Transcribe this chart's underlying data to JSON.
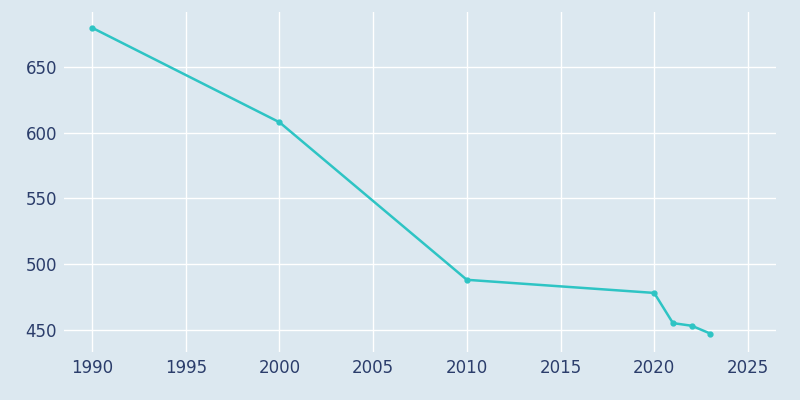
{
  "years": [
    1990,
    2000,
    2010,
    2020,
    2021,
    2022,
    2023
  ],
  "population": [
    680,
    608,
    488,
    478,
    455,
    453,
    447
  ],
  "line_color": "#2EC4C4",
  "marker": "o",
  "marker_size": 3.5,
  "line_width": 1.8,
  "background_color": "#dce8f0",
  "grid_color": "#FFFFFF",
  "tick_color": "#2B3D6B",
  "xlim": [
    1988.5,
    2026.5
  ],
  "ylim": [
    433,
    692
  ],
  "xticks": [
    1990,
    1995,
    2000,
    2005,
    2010,
    2015,
    2020,
    2025
  ],
  "yticks": [
    450,
    500,
    550,
    600,
    650
  ],
  "xlabel": "",
  "ylabel": "",
  "tick_labelsize": 12
}
